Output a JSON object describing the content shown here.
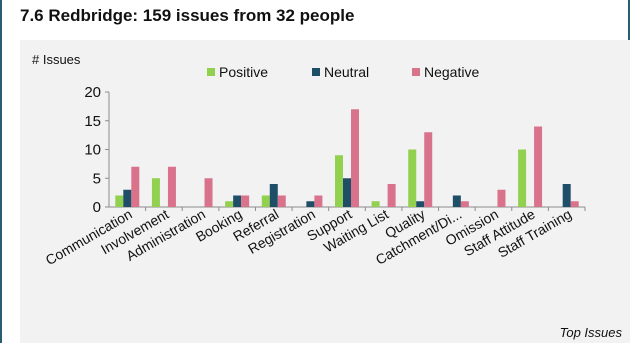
{
  "title": "7.6 Redbridge: 159 issues from 32 people",
  "footer": "Top Issues",
  "chart_data": {
    "type": "bar",
    "ylabel": "# Issues",
    "ylim": [
      0,
      20
    ],
    "yticks": [
      0,
      5,
      10,
      15,
      20
    ],
    "legend_position": "top",
    "categories": [
      "Communication",
      "Involvement",
      "Administration",
      "Booking",
      "Referral",
      "Registration",
      "Support",
      "Waiting List",
      "Quality",
      "Catchment/Di...",
      "Omission",
      "Staff Attitude",
      "Staff Training"
    ],
    "series": [
      {
        "name": "Positive",
        "color": "#92d050",
        "values": [
          2,
          5,
          0,
          1,
          2,
          0,
          9,
          1,
          10,
          0,
          0,
          10,
          0
        ]
      },
      {
        "name": "Neutral",
        "color": "#1f4e69",
        "values": [
          3,
          0,
          0,
          2,
          4,
          1,
          5,
          0,
          1,
          2,
          0,
          0,
          4
        ]
      },
      {
        "name": "Negative",
        "color": "#d9738c",
        "values": [
          7,
          7,
          5,
          2,
          2,
          2,
          17,
          4,
          13,
          1,
          3,
          14,
          1
        ]
      }
    ]
  }
}
